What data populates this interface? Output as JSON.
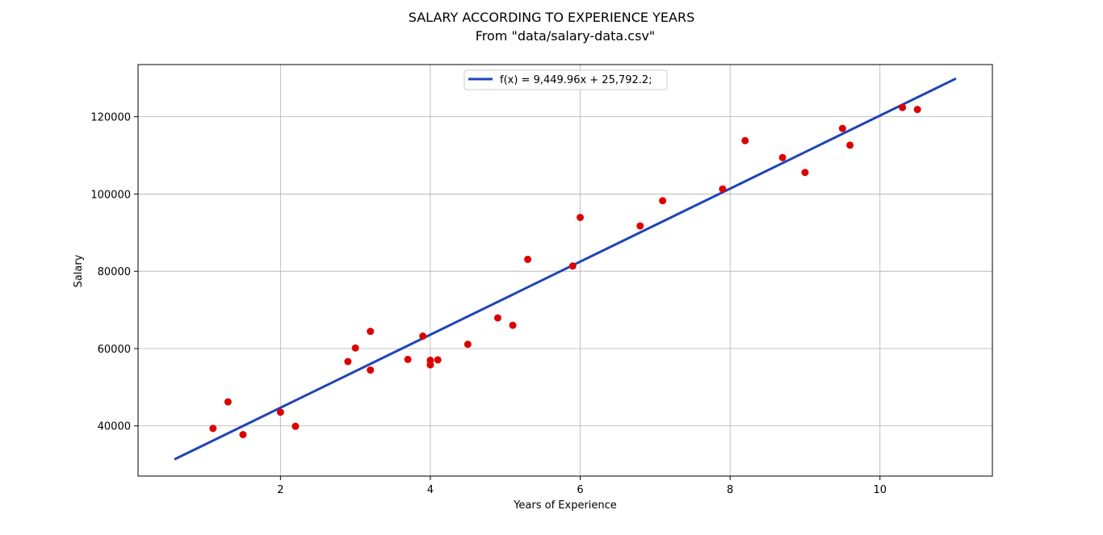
{
  "chart_data": {
    "type": "scatter",
    "title": "SALARY ACCORDING TO EXPERIENCE YEARS",
    "subtitle": "From \"data/salary-data.csv\"",
    "xlabel": "Years of Experience",
    "ylabel": "Salary",
    "xlim": [
      0.1,
      11.5
    ],
    "ylim": [
      27000,
      133500
    ],
    "xticks": [
      2,
      4,
      6,
      8,
      10
    ],
    "yticks": [
      40000,
      60000,
      80000,
      100000,
      120000
    ],
    "grid": true,
    "legend_position": "top-center",
    "series": [
      {
        "name": "f(x) = 9,449.96x + 25,792.2;",
        "kind": "line",
        "color": "#1f44b8",
        "x": [
          0.6,
          11.0
        ],
        "y": [
          31462,
          129742
        ]
      },
      {
        "kind": "scatter",
        "color": "#dd0000",
        "x": [
          1.1,
          1.3,
          1.5,
          2.0,
          2.2,
          2.9,
          3.0,
          3.2,
          3.2,
          3.7,
          3.9,
          4.0,
          4.0,
          4.1,
          4.5,
          4.9,
          5.1,
          5.3,
          5.9,
          6.0,
          6.8,
          7.1,
          7.9,
          8.2,
          8.7,
          9.0,
          9.5,
          9.6,
          10.3,
          10.5
        ],
        "y": [
          39343,
          46205,
          37731,
          43525,
          39891,
          56642,
          60150,
          54445,
          64445,
          57189,
          63218,
          55794,
          56957,
          57081,
          61111,
          67938,
          66029,
          83088,
          81363,
          93940,
          91738,
          98273,
          101302,
          113812,
          109431,
          105582,
          116969,
          112635,
          122391,
          121872
        ]
      }
    ]
  }
}
